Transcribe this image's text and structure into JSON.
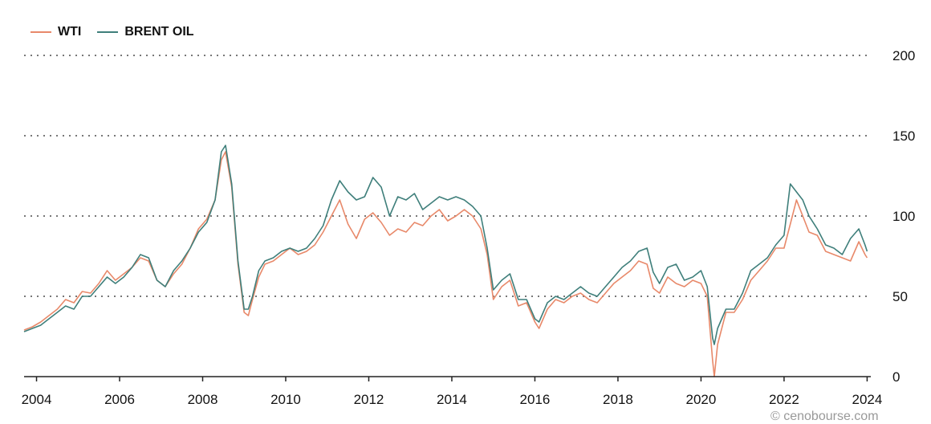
{
  "legend": {
    "series_0": "WTI",
    "series_1": "BRENT OIL"
  },
  "watermark": "© cenobourse.com",
  "chart_data": {
    "type": "line",
    "title": "",
    "xlabel": "",
    "ylabel": "",
    "xlim": [
      2003.7,
      2024.05
    ],
    "ylim": [
      0,
      200
    ],
    "yticks": [
      0,
      50,
      100,
      150,
      200
    ],
    "xticks": [
      2004,
      2006,
      2008,
      2010,
      2012,
      2014,
      2016,
      2018,
      2020,
      2022,
      2024
    ],
    "grid": "horizontal-dotted",
    "legend_position": "top-left",
    "y_axis_side": "right",
    "series": [
      {
        "name": "WTI",
        "color": "#e8896a",
        "x": [
          2003.7,
          2003.9,
          2004.1,
          2004.3,
          2004.5,
          2004.7,
          2004.9,
          2005.1,
          2005.3,
          2005.5,
          2005.7,
          2005.9,
          2006.1,
          2006.3,
          2006.5,
          2006.7,
          2006.9,
          2007.1,
          2007.3,
          2007.5,
          2007.7,
          2007.9,
          2008.1,
          2008.3,
          2008.45,
          2008.55,
          2008.7,
          2008.85,
          2009.0,
          2009.1,
          2009.2,
          2009.35,
          2009.5,
          2009.7,
          2009.9,
          2010.1,
          2010.3,
          2010.5,
          2010.7,
          2010.9,
          2011.1,
          2011.3,
          2011.5,
          2011.7,
          2011.9,
          2012.1,
          2012.3,
          2012.5,
          2012.7,
          2012.9,
          2013.1,
          2013.3,
          2013.5,
          2013.7,
          2013.9,
          2014.1,
          2014.3,
          2014.5,
          2014.7,
          2014.85,
          2015.0,
          2015.2,
          2015.4,
          2015.6,
          2015.8,
          2016.0,
          2016.1,
          2016.3,
          2016.5,
          2016.7,
          2016.9,
          2017.1,
          2017.3,
          2017.5,
          2017.7,
          2017.9,
          2018.1,
          2018.3,
          2018.5,
          2018.7,
          2018.85,
          2019.0,
          2019.2,
          2019.4,
          2019.6,
          2019.8,
          2020.0,
          2020.15,
          2020.28,
          2020.32,
          2020.4,
          2020.6,
          2020.8,
          2021.0,
          2021.2,
          2021.4,
          2021.6,
          2021.8,
          2022.0,
          2022.15,
          2022.3,
          2022.45,
          2022.6,
          2022.8,
          2023.0,
          2023.2,
          2023.4,
          2023.6,
          2023.8,
          2023.95,
          2024.0
        ],
        "values": [
          29,
          31,
          34,
          38,
          42,
          48,
          46,
          53,
          52,
          58,
          66,
          60,
          64,
          68,
          74,
          72,
          60,
          56,
          64,
          70,
          80,
          92,
          98,
          110,
          135,
          140,
          118,
          70,
          40,
          38,
          48,
          62,
          70,
          72,
          76,
          80,
          76,
          78,
          82,
          90,
          100,
          110,
          95,
          86,
          98,
          102,
          96,
          88,
          92,
          90,
          96,
          94,
          100,
          104,
          97,
          100,
          104,
          100,
          92,
          76,
          48,
          56,
          60,
          44,
          46,
          34,
          30,
          42,
          48,
          46,
          50,
          52,
          48,
          46,
          52,
          58,
          62,
          66,
          72,
          70,
          55,
          52,
          62,
          58,
          56,
          60,
          58,
          50,
          10,
          0,
          20,
          40,
          40,
          48,
          60,
          66,
          72,
          80,
          80,
          95,
          110,
          100,
          90,
          88,
          78,
          76,
          74,
          72,
          84,
          76,
          74
        ]
      },
      {
        "name": "BRENT OIL",
        "color": "#3f7f7b",
        "x": [
          2003.7,
          2003.9,
          2004.1,
          2004.3,
          2004.5,
          2004.7,
          2004.9,
          2005.1,
          2005.3,
          2005.5,
          2005.7,
          2005.9,
          2006.1,
          2006.3,
          2006.5,
          2006.7,
          2006.9,
          2007.1,
          2007.3,
          2007.5,
          2007.7,
          2007.9,
          2008.1,
          2008.3,
          2008.45,
          2008.55,
          2008.7,
          2008.85,
          2009.0,
          2009.1,
          2009.2,
          2009.35,
          2009.5,
          2009.7,
          2009.9,
          2010.1,
          2010.3,
          2010.5,
          2010.7,
          2010.9,
          2011.1,
          2011.3,
          2011.5,
          2011.7,
          2011.9,
          2012.1,
          2012.3,
          2012.5,
          2012.7,
          2012.9,
          2013.1,
          2013.3,
          2013.5,
          2013.7,
          2013.9,
          2014.1,
          2014.3,
          2014.5,
          2014.7,
          2014.85,
          2015.0,
          2015.2,
          2015.4,
          2015.6,
          2015.8,
          2016.0,
          2016.1,
          2016.3,
          2016.5,
          2016.7,
          2016.9,
          2017.1,
          2017.3,
          2017.5,
          2017.7,
          2017.9,
          2018.1,
          2018.3,
          2018.5,
          2018.7,
          2018.85,
          2019.0,
          2019.2,
          2019.4,
          2019.6,
          2019.8,
          2020.0,
          2020.15,
          2020.28,
          2020.32,
          2020.4,
          2020.6,
          2020.8,
          2021.0,
          2021.2,
          2021.4,
          2021.6,
          2021.8,
          2022.0,
          2022.15,
          2022.3,
          2022.45,
          2022.6,
          2022.8,
          2023.0,
          2023.2,
          2023.4,
          2023.6,
          2023.8,
          2023.95,
          2024.0
        ],
        "values": [
          28,
          30,
          32,
          36,
          40,
          44,
          42,
          50,
          50,
          56,
          62,
          58,
          62,
          68,
          76,
          74,
          60,
          56,
          66,
          72,
          80,
          90,
          96,
          110,
          140,
          144,
          120,
          72,
          42,
          42,
          50,
          66,
          72,
          74,
          78,
          80,
          78,
          80,
          86,
          94,
          110,
          122,
          115,
          110,
          112,
          124,
          118,
          100,
          112,
          110,
          114,
          104,
          108,
          112,
          110,
          112,
          110,
          106,
          100,
          80,
          54,
          60,
          64,
          48,
          48,
          36,
          34,
          46,
          50,
          48,
          52,
          56,
          52,
          50,
          56,
          62,
          68,
          72,
          78,
          80,
          65,
          58,
          68,
          70,
          60,
          62,
          66,
          56,
          24,
          20,
          30,
          42,
          42,
          52,
          66,
          70,
          74,
          82,
          88,
          120,
          115,
          110,
          100,
          92,
          82,
          80,
          76,
          86,
          92,
          82,
          78
        ]
      }
    ]
  }
}
